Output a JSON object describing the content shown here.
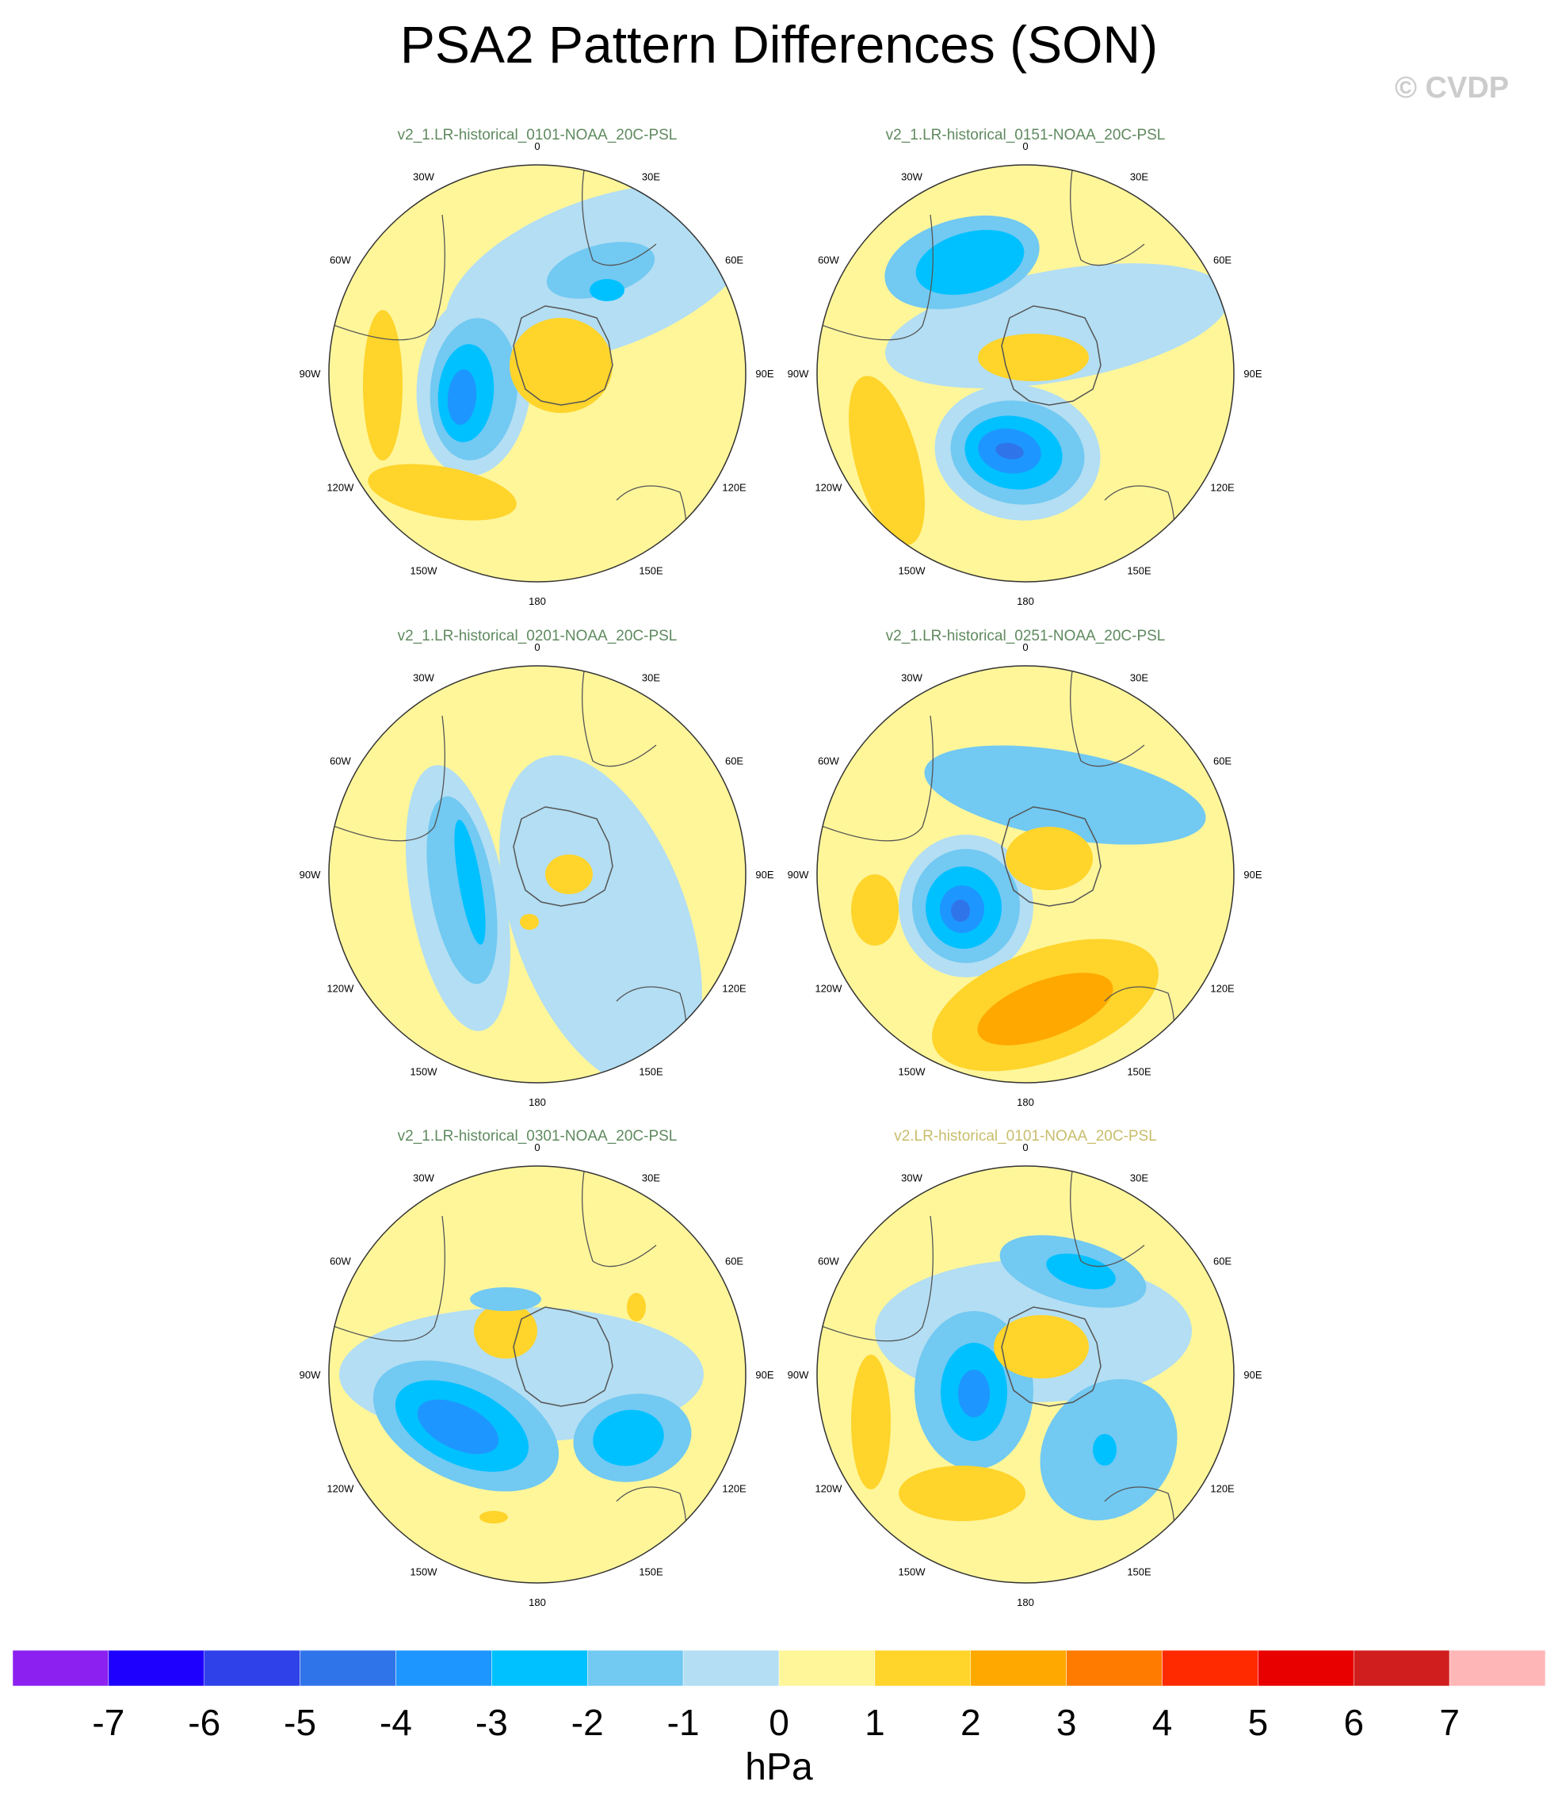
{
  "title": "PSA2 Pattern Differences (SON)",
  "copyright": "© CVDP",
  "chart_data": {
    "type": "heatmap",
    "projection": "south polar stereographic",
    "variable": "PSL",
    "longitude_labels": [
      "0",
      "30E",
      "60E",
      "90E",
      "120E",
      "150E",
      "180",
      "150W",
      "120W",
      "90W",
      "60W",
      "30W"
    ],
    "colorbar": {
      "unit": "hPa",
      "tick_labels": [
        "-7",
        "-6",
        "-5",
        "-4",
        "-3",
        "-2",
        "-1",
        "0",
        "1",
        "2",
        "3",
        "4",
        "5",
        "6",
        "7"
      ],
      "colors": [
        "#8b20f0",
        "#1e00ff",
        "#2f41e8",
        "#3074ea",
        "#1e96ff",
        "#00c1ff",
        "#72c9f2",
        "#b3def3",
        "#fff69a",
        "#ffd42b",
        "#ffa800",
        "#ff7b00",
        "#ff2a00",
        "#e80000",
        "#d01e1e",
        "#ffb6b6"
      ]
    },
    "panels": [
      {
        "title": "v2_1.LR-historical_0101-NOAA_20C-PSL",
        "title_color": "#5f8a5f"
      },
      {
        "title": "v2_1.LR-historical_0151-NOAA_20C-PSL",
        "title_color": "#5f8a5f"
      },
      {
        "title": "v2_1.LR-historical_0201-NOAA_20C-PSL",
        "title_color": "#5f8a5f"
      },
      {
        "title": "v2_1.LR-historical_0251-NOAA_20C-PSL",
        "title_color": "#5f8a5f"
      },
      {
        "title": "v2_1.LR-historical_0301-NOAA_20C-PSL",
        "title_color": "#5f8a5f"
      },
      {
        "title": "v2.LR-historical_0101-NOAA_20C-PSL",
        "title_color": "#c8bd6b"
      }
    ]
  }
}
